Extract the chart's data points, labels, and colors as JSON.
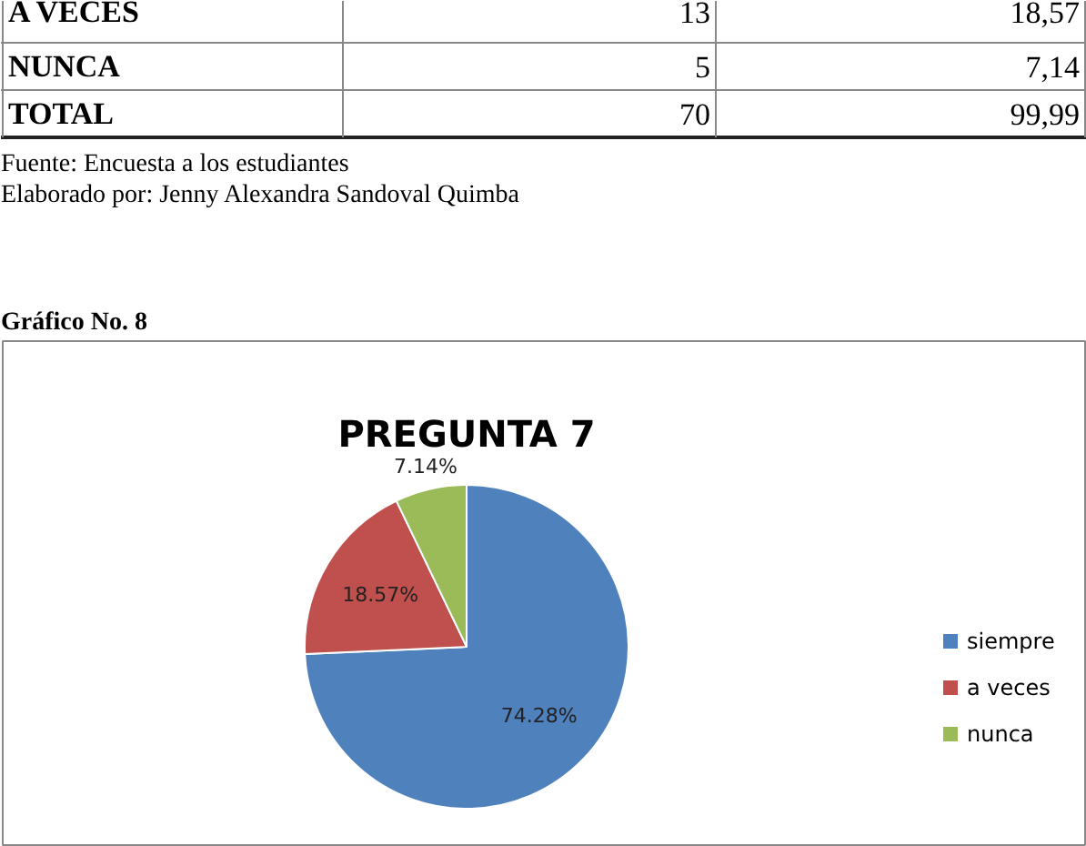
{
  "chart_data": {
    "type": "pie",
    "title": "PREGUNTA 7",
    "categories": [
      "siempre",
      "a veces",
      "nunca"
    ],
    "values": [
      74.28,
      18.57,
      7.14
    ],
    "colors": [
      "#4f81bd",
      "#c0504d",
      "#9bbb59"
    ],
    "value_labels": [
      "74.28%",
      "18.57%",
      "7.14%"
    ],
    "legend": "right",
    "annotations": [
      "A VECES",
      "13",
      "18,57",
      "NUNCA",
      "5",
      "7,14",
      "TOTAL",
      "70",
      "99,99",
      "Fuente: Encuesta a los estudiantes",
      "Elaborado por: Jenny Alexandra Sandoval Quimba",
      "Gráfico No. 8"
    ]
  }
}
